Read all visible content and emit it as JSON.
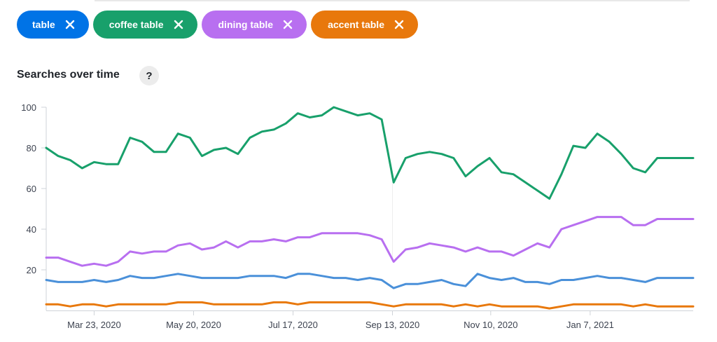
{
  "filters": [
    {
      "label": "table",
      "color": "#0073e6"
    },
    {
      "label": "coffee table",
      "color": "#18a06b"
    },
    {
      "label": "dining table",
      "color": "#b86ff0"
    },
    {
      "label": "accent table",
      "color": "#e8780c"
    }
  ],
  "section_title": "Searches over time",
  "help_label": "?",
  "icons": {
    "remove": "close-icon",
    "help": "question-icon"
  },
  "chart_data": {
    "type": "line",
    "title": "Searches over time",
    "xlabel": "",
    "ylabel": "",
    "ylim": [
      0,
      100
    ],
    "y_ticks": [
      20,
      40,
      60,
      80,
      100
    ],
    "x": [
      "2020-02-23",
      "2020-03-01",
      "2020-03-08",
      "2020-03-15",
      "2020-03-22",
      "2020-03-29",
      "2020-04-05",
      "2020-04-12",
      "2020-04-19",
      "2020-04-26",
      "2020-05-03",
      "2020-05-10",
      "2020-05-17",
      "2020-05-24",
      "2020-05-31",
      "2020-06-07",
      "2020-06-14",
      "2020-06-21",
      "2020-06-28",
      "2020-07-05",
      "2020-07-12",
      "2020-07-19",
      "2020-07-26",
      "2020-08-02",
      "2020-08-09",
      "2020-08-16",
      "2020-08-23",
      "2020-08-30",
      "2020-09-06",
      "2020-09-13",
      "2020-09-20",
      "2020-09-27",
      "2020-10-04",
      "2020-10-11",
      "2020-10-18",
      "2020-10-25",
      "2020-11-01",
      "2020-11-08",
      "2020-11-15",
      "2020-11-22",
      "2020-11-29",
      "2020-12-06",
      "2020-12-13",
      "2020-12-20",
      "2020-12-27",
      "2021-01-03",
      "2021-01-10",
      "2021-01-17",
      "2021-01-24",
      "2021-01-31",
      "2021-02-07",
      "2021-02-14",
      "2021-02-21",
      "2021-02-28",
      "2021-03-07"
    ],
    "x_tick_labels": [
      "Mar 23, 2020",
      "May 20, 2020",
      "Jul 17, 2020",
      "Sep 13, 2020",
      "Nov 10, 2020",
      "Jan 7, 2021"
    ],
    "x_tick_positions": [
      4,
      12.3,
      20.6,
      28.9,
      37.1,
      45.4
    ],
    "series": [
      {
        "name": "table",
        "color": "#4a90d9",
        "values": [
          15,
          14,
          14,
          14,
          15,
          14,
          15,
          17,
          16,
          16,
          17,
          18,
          17,
          16,
          16,
          16,
          16,
          17,
          17,
          17,
          16,
          18,
          18,
          17,
          16,
          16,
          15,
          16,
          15,
          11,
          13,
          13,
          14,
          15,
          13,
          12,
          18,
          16,
          15,
          16,
          14,
          14,
          13,
          15,
          15,
          16,
          17,
          16,
          16,
          15,
          14,
          16,
          16,
          16,
          16
        ]
      },
      {
        "name": "coffee table",
        "color": "#18a06b",
        "values": [
          80,
          76,
          74,
          70,
          73,
          72,
          72,
          85,
          83,
          78,
          78,
          87,
          85,
          76,
          79,
          80,
          77,
          85,
          88,
          89,
          92,
          97,
          95,
          96,
          100,
          98,
          96,
          97,
          94,
          63,
          75,
          77,
          78,
          77,
          75,
          66,
          71,
          75,
          68,
          67,
          63,
          59,
          55,
          67,
          81,
          80,
          87,
          83,
          77,
          70,
          68,
          75,
          75,
          75,
          75
        ]
      },
      {
        "name": "dining table",
        "color": "#b86ff0",
        "values": [
          26,
          26,
          24,
          22,
          23,
          22,
          24,
          29,
          28,
          29,
          29,
          32,
          33,
          30,
          31,
          34,
          31,
          34,
          34,
          35,
          34,
          36,
          36,
          38,
          38,
          38,
          38,
          37,
          35,
          24,
          30,
          31,
          33,
          32,
          31,
          29,
          31,
          29,
          29,
          27,
          30,
          33,
          31,
          40,
          42,
          44,
          46,
          46,
          46,
          42,
          42,
          45,
          45,
          45,
          45
        ]
      },
      {
        "name": "accent table",
        "color": "#e8780c",
        "values": [
          3,
          3,
          2,
          3,
          3,
          2,
          3,
          3,
          3,
          3,
          3,
          4,
          4,
          4,
          3,
          3,
          3,
          3,
          3,
          4,
          4,
          3,
          4,
          4,
          4,
          4,
          4,
          4,
          3,
          2,
          3,
          3,
          3,
          3,
          2,
          3,
          2,
          3,
          2,
          2,
          2,
          2,
          1,
          2,
          3,
          3,
          3,
          3,
          3,
          2,
          3,
          2,
          2,
          2,
          2
        ]
      }
    ]
  }
}
